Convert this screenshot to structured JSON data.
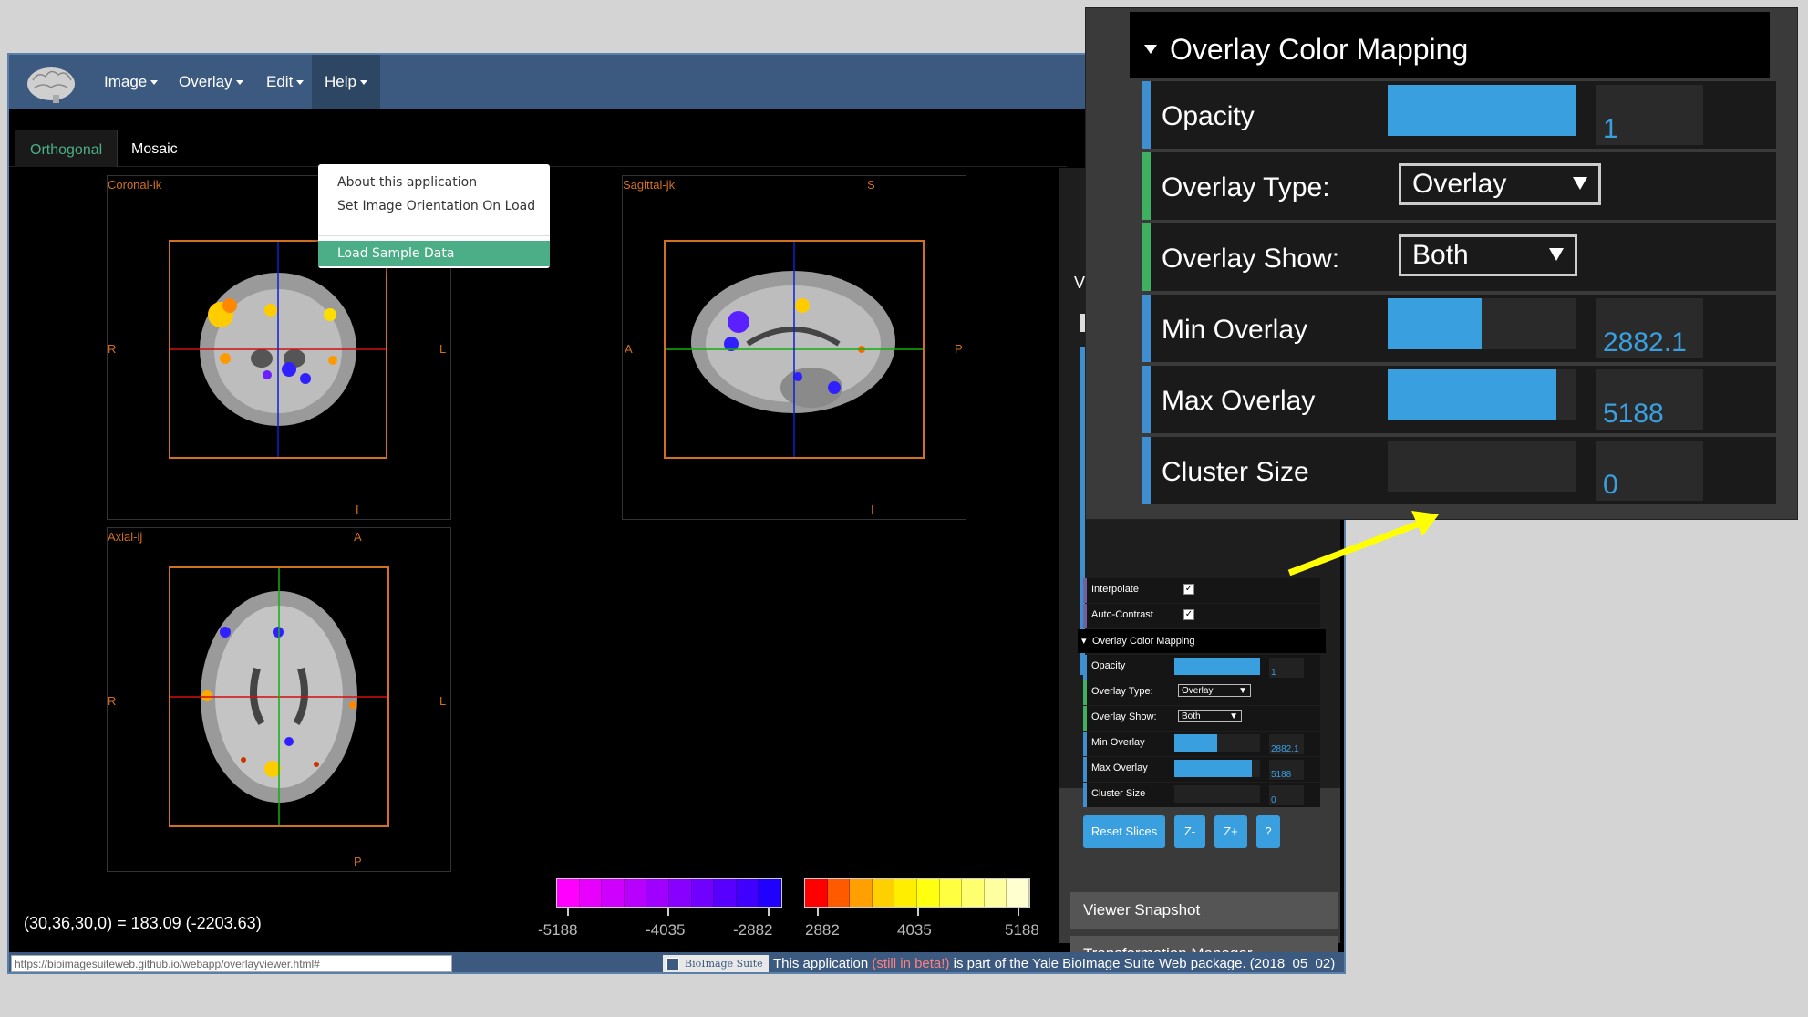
{
  "nav": {
    "menus": [
      "Image",
      "Overlay",
      "Edit",
      "Help"
    ]
  },
  "help_menu": {
    "items": [
      "About this application",
      "Set Image Orientation On Load"
    ],
    "selected": "Load Sample Data"
  },
  "tabs": {
    "orthogonal": "Orthogonal",
    "mosaic": "Mosaic"
  },
  "views": {
    "coronal": {
      "label": "Coronal-ik",
      "left": "R",
      "right": "L",
      "bottom": "I"
    },
    "sagittal": {
      "label": "Sagittal-jk",
      "top": "S",
      "left": "A",
      "right": "P",
      "bottom": "I"
    },
    "axial": {
      "label": "Axial-ij",
      "top": "A",
      "left": "R",
      "right": "L",
      "bottom": "P"
    }
  },
  "coords_readout": "(30,36,30,0) = 183.09 (-2203.63)",
  "colorbar": {
    "neg_labels": [
      "-5188",
      "-4035",
      "-2882"
    ],
    "pos_labels": [
      "2882",
      "4035",
      "5188"
    ],
    "neg_colors": [
      "#ff00ff",
      "#e800ff",
      "#d000ff",
      "#b800ff",
      "#a000ff",
      "#8800ff",
      "#7000ff",
      "#5800ff",
      "#4000ff",
      "#2000ff"
    ],
    "pos_colors": [
      "#ff0000",
      "#ff5a00",
      "#ffa000",
      "#ffd000",
      "#ffee00",
      "#ffff10",
      "#ffff40",
      "#ffff70",
      "#ffffa0",
      "#ffffd0"
    ]
  },
  "side_panel": {
    "header_partial": "V",
    "interpolate": {
      "label": "Interpolate",
      "checked": true
    },
    "auto_contrast": {
      "label": "Auto-Contrast",
      "checked": true
    },
    "overlay_section": "Overlay Color Mapping",
    "opacity": {
      "label": "Opacity",
      "value": "1",
      "fraction": 1.0
    },
    "overlay_type": {
      "label": "Overlay Type:",
      "value": "Overlay"
    },
    "overlay_show": {
      "label": "Overlay Show:",
      "value": "Both"
    },
    "min_overlay": {
      "label": "Min Overlay",
      "value": "2882.1",
      "fraction": 0.5
    },
    "max_overlay": {
      "label": "Max Overlay",
      "value": "5188",
      "fraction": 0.9
    },
    "cluster_size": {
      "label": "Cluster Size",
      "value": "0",
      "fraction": 0.0
    },
    "buttons": [
      "Reset Slices",
      "Z-",
      "Z+",
      "?"
    ],
    "viewer_snapshot": "Viewer Snapshot",
    "transformation_manager": "Transformation Manager"
  },
  "status_bar": {
    "url": "https://bioimagesuiteweb.github.io/webapp/overlayviewer.html#",
    "suite_logo": "BioImage Suite",
    "footer_pre": "This application",
    "footer_beta": "(still in beta!)",
    "footer_post": "is part of the Yale BioImage Suite Web package. (2018_05_02)"
  },
  "zoom_callout": {
    "title": "Overlay Color Mapping",
    "opacity": {
      "label": "Opacity",
      "value": "1",
      "fraction": 1.0
    },
    "overlay_type": {
      "label": "Overlay Type:",
      "value": "Overlay"
    },
    "overlay_show": {
      "label": "Overlay Show:",
      "value": "Both"
    },
    "min_overlay": {
      "label": "Min Overlay",
      "value": "2882.1",
      "fraction": 0.5
    },
    "max_overlay": {
      "label": "Max Overlay",
      "value": "5188",
      "fraction": 0.9
    },
    "cluster_size": {
      "label": "Cluster Size",
      "value": "0",
      "fraction": 0.0
    }
  },
  "colors": {
    "navbar": "#3c5a7f",
    "accent": "#3a9fde",
    "menu_highlight": "#4cae87",
    "orientation_label": "#d07020",
    "arrow": "#ffff00"
  }
}
